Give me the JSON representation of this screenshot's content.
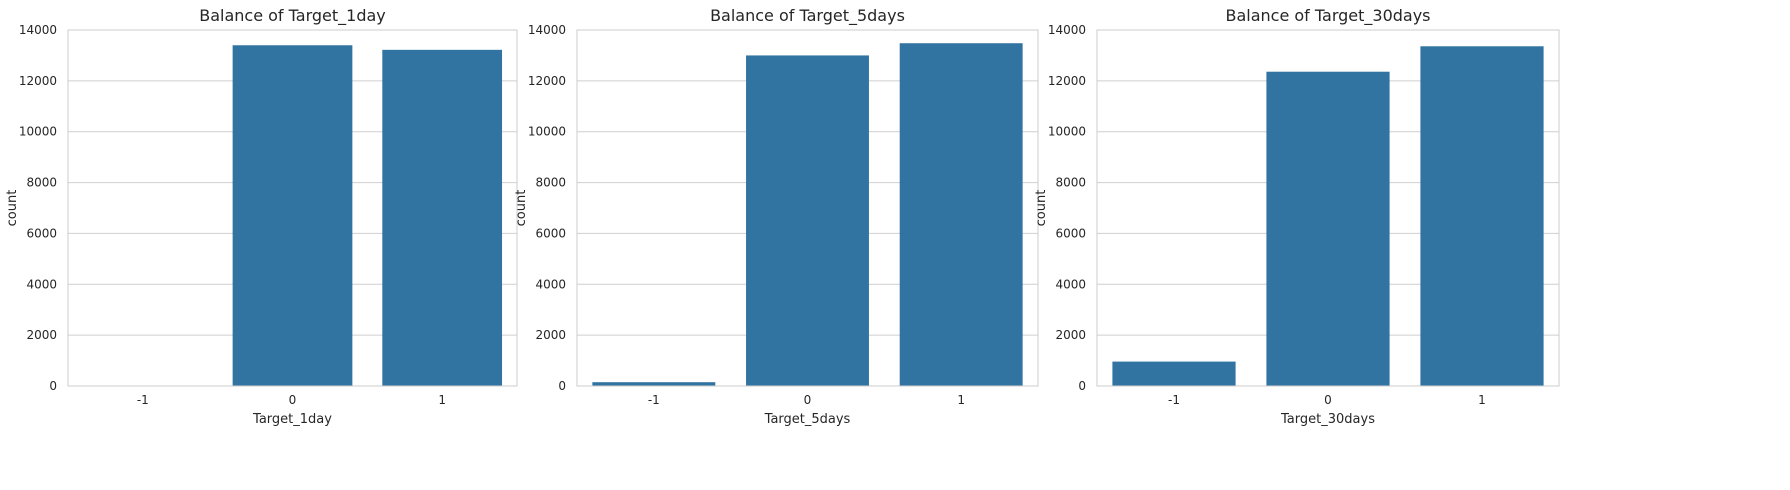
{
  "chart_data": [
    {
      "type": "bar",
      "title": "Balance of Target_1day",
      "xlabel": "Target_1day",
      "ylabel": "count",
      "categories": [
        "-1",
        "0",
        "1"
      ],
      "values": [
        0,
        13400,
        13220
      ],
      "ylim": [
        0,
        14000
      ],
      "yticks": [
        0,
        2000,
        4000,
        6000,
        8000,
        10000,
        12000,
        14000
      ],
      "grid": "horizontal",
      "bar_color": "#3274a1"
    },
    {
      "type": "bar",
      "title": "Balance of Target_5days",
      "xlabel": "Target_5days",
      "ylabel": "count",
      "categories": [
        "-1",
        "0",
        "1"
      ],
      "values": [
        150,
        13000,
        13480
      ],
      "ylim": [
        0,
        14000
      ],
      "yticks": [
        0,
        2000,
        4000,
        6000,
        8000,
        10000,
        12000,
        14000
      ],
      "grid": "horizontal",
      "bar_color": "#3274a1"
    },
    {
      "type": "bar",
      "title": "Balance of Target_30days",
      "xlabel": "Target_30days",
      "ylabel": "count",
      "categories": [
        "-1",
        "0",
        "1"
      ],
      "values": [
        960,
        12360,
        13360
      ],
      "ylim": [
        0,
        14000
      ],
      "yticks": [
        0,
        2000,
        4000,
        6000,
        8000,
        10000,
        12000,
        14000
      ],
      "grid": "horizontal",
      "bar_color": "#3274a1"
    }
  ]
}
